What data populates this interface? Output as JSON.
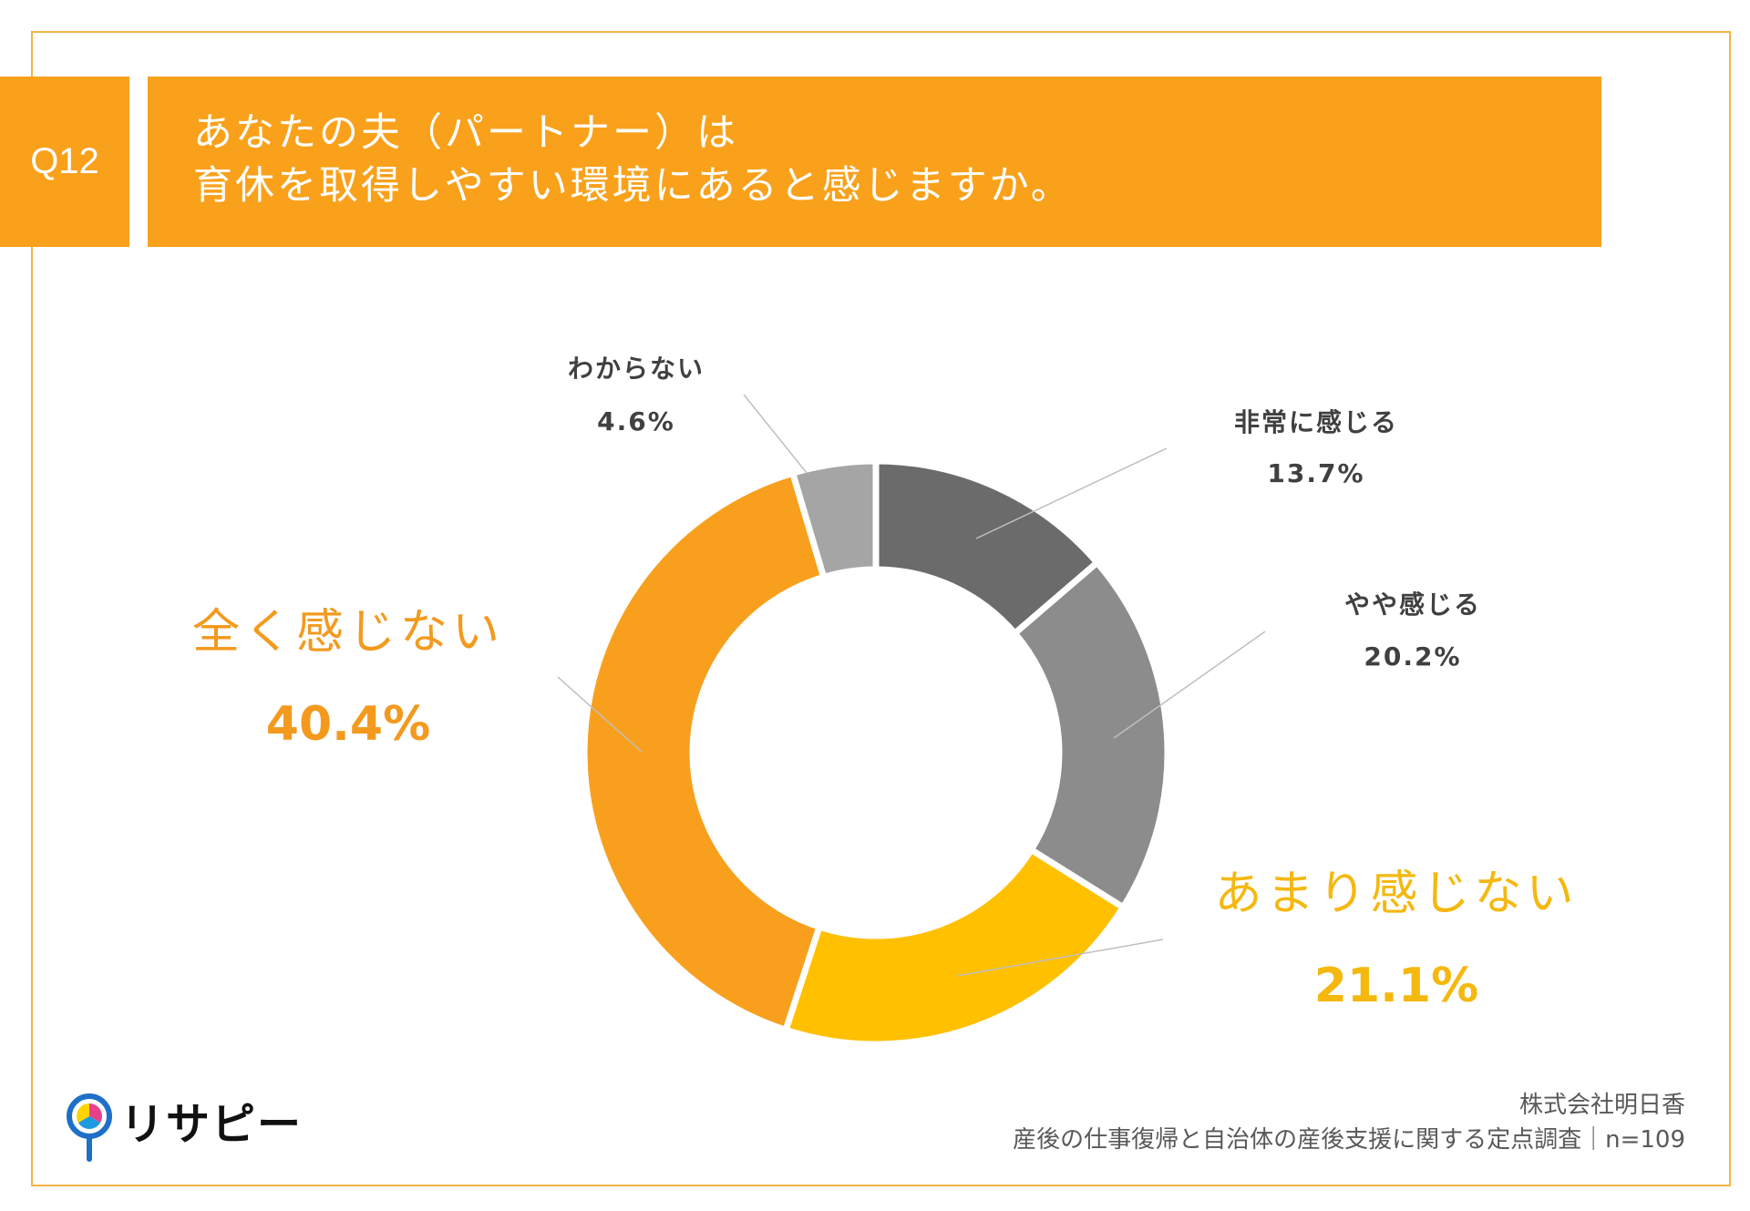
{
  "header": {
    "question_no": "Q12",
    "question_lines": [
      "あなたの夫（パートナー）は",
      "育休を取得しやすい環境にあると感じますか。"
    ]
  },
  "chart_data": {
    "type": "pie",
    "donut": true,
    "categories": [
      "非常に感じる",
      "やや感じる",
      "あまり感じない",
      "全く感じない",
      "わからない"
    ],
    "values": [
      13.7,
      20.2,
      21.1,
      40.4,
      4.6
    ],
    "value_labels": [
      "13.7%",
      "20.2%",
      "21.1%",
      "40.4%",
      "4.6%"
    ],
    "colors": [
      "#6B6B6B",
      "#8C8C8C",
      "#FFC000",
      "#F8A01E",
      "#A5A5A5"
    ],
    "label_colors": [
      "#404040",
      "#404040",
      "#F5B80F",
      "#F39A1E",
      "#404040"
    ]
  },
  "footer": {
    "company": "株式会社明日香",
    "survey": "産後の仕事復帰と自治体の産後支援に関する定点調査｜n=109"
  },
  "logo": {
    "text": "リサピー"
  },
  "colors": {
    "accent": "#F9A11B",
    "frame": "#F2B544"
  }
}
